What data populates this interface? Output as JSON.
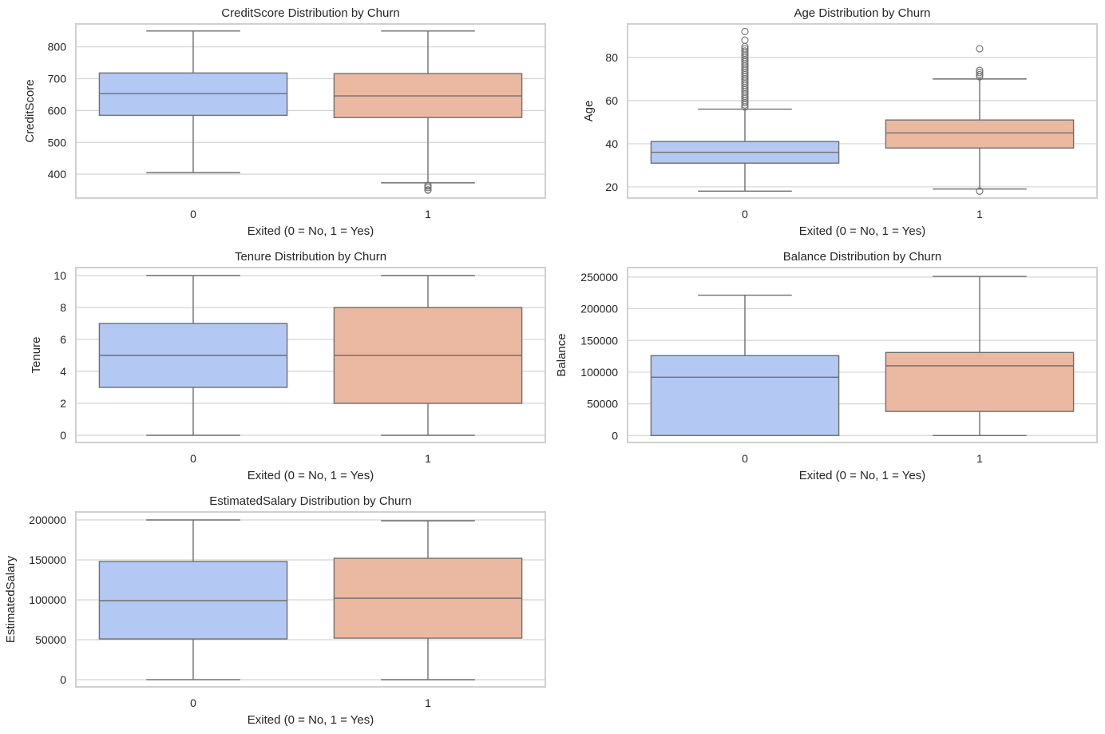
{
  "figure": {
    "colors": {
      "class0": "#b3c8f2",
      "class1": "#ebb9a2",
      "line": "#6f6f6f",
      "grid": "#d4d4d4"
    }
  },
  "chart_data": [
    {
      "type": "box",
      "title": "CreditScore Distribution by Churn",
      "xlabel": "Exited (0 = No, 1 = Yes)",
      "ylabel": "CreditScore",
      "categories": [
        "0",
        "1"
      ],
      "yticks": [
        400,
        500,
        600,
        700,
        800
      ],
      "ylim": [
        325,
        872
      ],
      "grid": true,
      "boxes": [
        {
          "category": "0",
          "whislo": 405,
          "q1": 585,
          "med": 653,
          "q3": 718,
          "whishi": 850,
          "fliers": []
        },
        {
          "category": "1",
          "whislo": 373,
          "q1": 578,
          "med": 646,
          "q3": 716,
          "whishi": 850,
          "fliers": [
            350,
            351,
            358,
            363,
            365
          ]
        }
      ]
    },
    {
      "type": "box",
      "title": "Age Distribution by Churn",
      "xlabel": "Exited (0 = No, 1 = Yes)",
      "ylabel": "Age",
      "categories": [
        "0",
        "1"
      ],
      "yticks": [
        20,
        40,
        60,
        80
      ],
      "ylim": [
        14.8,
        95.5
      ],
      "grid": true,
      "boxes": [
        {
          "category": "0",
          "whislo": 18,
          "q1": 31,
          "med": 36,
          "q3": 41,
          "whishi": 56,
          "fliers": [
            57,
            58,
            59,
            60,
            61,
            62,
            63,
            64,
            65,
            66,
            67,
            68,
            69,
            70,
            71,
            72,
            73,
            74,
            75,
            76,
            77,
            78,
            79,
            80,
            81,
            82,
            83,
            84,
            85,
            88,
            92
          ]
        },
        {
          "category": "1",
          "whislo": 19,
          "q1": 38,
          "med": 45,
          "q3": 51,
          "whishi": 70,
          "fliers": [
            18,
            71,
            72,
            73,
            74,
            84
          ]
        }
      ]
    },
    {
      "type": "box",
      "title": "Tenure Distribution by Churn",
      "xlabel": "Exited (0 = No, 1 = Yes)",
      "ylabel": "Tenure",
      "categories": [
        "0",
        "1"
      ],
      "yticks": [
        0,
        2,
        4,
        6,
        8,
        10
      ],
      "ylim": [
        -0.45,
        10.5
      ],
      "grid": true,
      "boxes": [
        {
          "category": "0",
          "whislo": 0,
          "q1": 3,
          "med": 5,
          "q3": 7,
          "whishi": 10,
          "fliers": []
        },
        {
          "category": "1",
          "whislo": 0,
          "q1": 2,
          "med": 5,
          "q3": 8,
          "whishi": 10,
          "fliers": []
        }
      ]
    },
    {
      "type": "box",
      "title": "Balance Distribution by Churn",
      "xlabel": "Exited (0 = No, 1 = Yes)",
      "ylabel": "Balance",
      "categories": [
        "0",
        "1"
      ],
      "yticks": [
        0,
        50000,
        100000,
        150000,
        200000,
        250000
      ],
      "ylim": [
        -11000,
        265000
      ],
      "grid": true,
      "boxes": [
        {
          "category": "0",
          "whislo": 0,
          "q1": 0,
          "med": 92000,
          "q3": 126000,
          "whishi": 221500,
          "fliers": []
        },
        {
          "category": "1",
          "whislo": 0,
          "q1": 38000,
          "med": 110000,
          "q3": 131000,
          "whishi": 251000,
          "fliers": []
        }
      ]
    },
    {
      "type": "box",
      "title": "EstimatedSalary Distribution by Churn",
      "xlabel": "Exited (0 = No, 1 = Yes)",
      "ylabel": "EstimatedSalary",
      "categories": [
        "0",
        "1"
      ],
      "yticks": [
        0,
        50000,
        100000,
        150000,
        200000
      ],
      "ylim": [
        -9000,
        210000
      ],
      "grid": true,
      "boxes": [
        {
          "category": "0",
          "whislo": 90,
          "q1": 51000,
          "med": 99000,
          "q3": 148000,
          "whishi": 200000,
          "fliers": []
        },
        {
          "category": "1",
          "whislo": 12,
          "q1": 52000,
          "med": 102000,
          "q3": 152000,
          "whishi": 199000,
          "fliers": []
        }
      ]
    }
  ]
}
